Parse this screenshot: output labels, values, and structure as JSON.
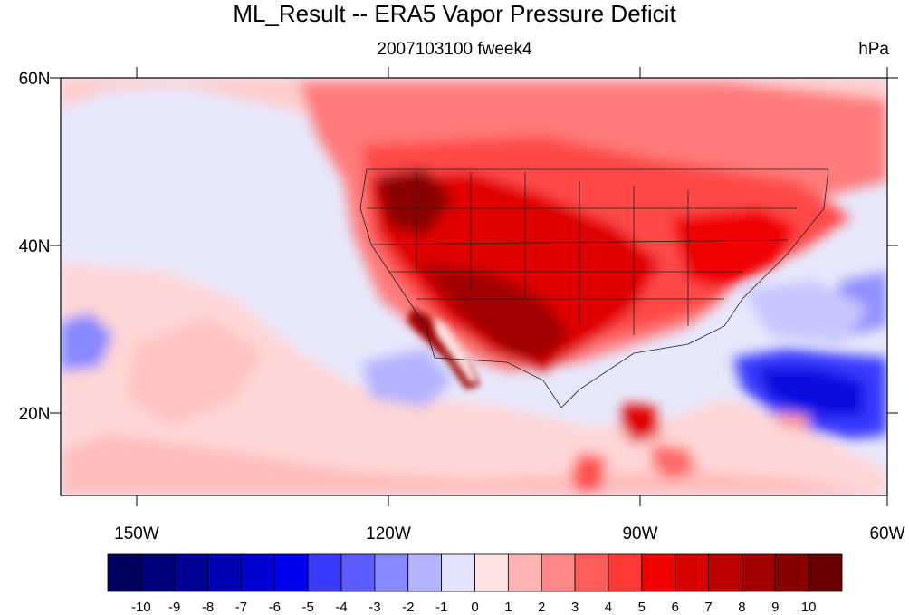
{
  "title": "ML_Result -- ERA5 Vapor Pressure Deficit",
  "subtitle_center": "2007103100 fweek4",
  "subtitle_right": "hPa",
  "lat_labels": [
    "60N",
    "40N",
    "20N"
  ],
  "lon_labels": [
    "150W",
    "120W",
    "90W",
    "60W"
  ],
  "map": {
    "lon_range": [
      -159,
      -61
    ],
    "lat_range": [
      10,
      60
    ],
    "projection": "cylindrical-equidistant",
    "field": "vapor pressure deficit anomaly",
    "colorbar_ticks": [
      "-10",
      "-9",
      "-8",
      "-7",
      "-6",
      "-5",
      "-4",
      "-3",
      "-2",
      "-1",
      "0",
      "1",
      "2",
      "3",
      "4",
      "5",
      "6",
      "7",
      "8",
      "9",
      "10"
    ],
    "colorbar_colors": [
      "#00005e",
      "#00007a",
      "#000096",
      "#0000b4",
      "#0000d2",
      "#0000f0",
      "#3b3bff",
      "#5c5cff",
      "#8787ff",
      "#b3b3ff",
      "#e3e3fb",
      "#ffe3e3",
      "#ffb3b3",
      "#ff8787",
      "#ff5c5c",
      "#ff3838",
      "#f00000",
      "#d60000",
      "#bb0000",
      "#a00000",
      "#870000",
      "#6b0000"
    ]
  }
}
